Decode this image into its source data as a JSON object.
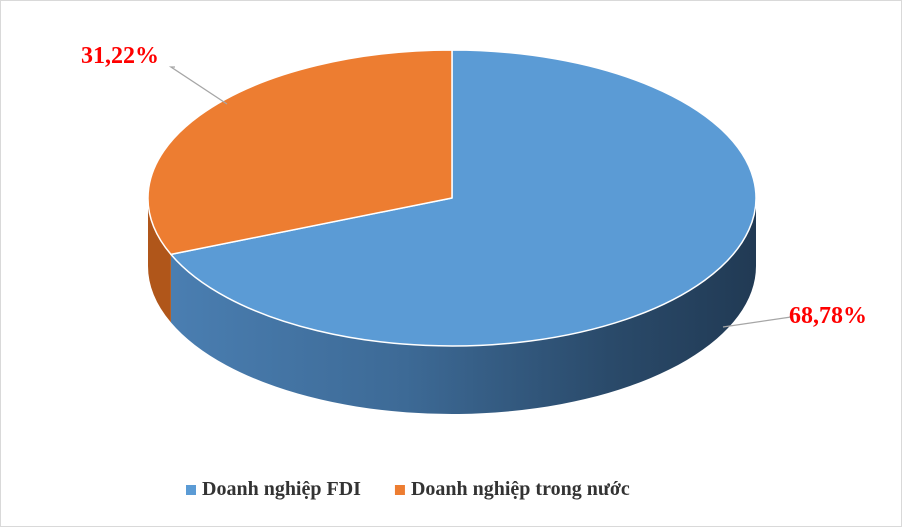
{
  "chart_data": {
    "type": "pie",
    "style": "3d",
    "title": "",
    "categories": [
      "Doanh nghiệp FDI",
      "Doanh nghiệp trong nước"
    ],
    "values": [
      68.78,
      31.22
    ],
    "data_labels": [
      "68,78%",
      "31,22%"
    ],
    "colors": [
      "#5b9bd5",
      "#ed7d31"
    ],
    "label_color": "#ff0000",
    "legend_position": "bottom"
  }
}
